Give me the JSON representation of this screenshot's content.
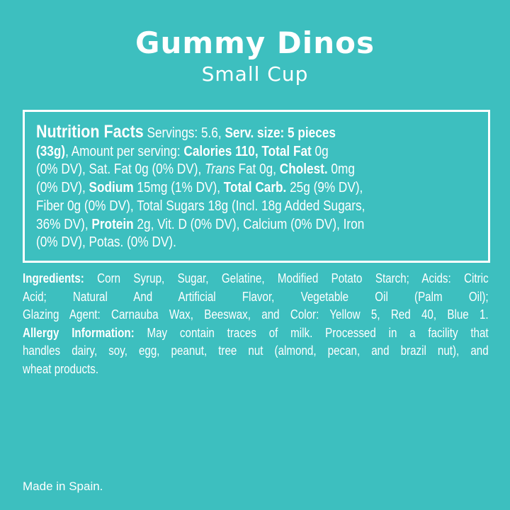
{
  "header": {
    "title": "Gummy Dinos",
    "subtitle": "Small Cup"
  },
  "nutrition": {
    "lines": [
      [
        {
          "t": "Nutrition Facts",
          "s": "big"
        },
        {
          "t": " Servings: 5.6, ",
          "s": ""
        },
        {
          "t": "Serv. size: 5 pieces",
          "s": "b"
        }
      ],
      [
        {
          "t": "(33g)",
          "s": "b"
        },
        {
          "t": ", Amount per serving: ",
          "s": ""
        },
        {
          "t": "Calories 110, Total Fat",
          "s": "b"
        },
        {
          "t": " 0g",
          "s": ""
        }
      ],
      [
        {
          "t": "(0% DV), Sat. Fat 0g (0% DV), ",
          "s": ""
        },
        {
          "t": "Trans",
          "s": "i"
        },
        {
          "t": " Fat 0g, ",
          "s": ""
        },
        {
          "t": "Cholest.",
          "s": "b"
        },
        {
          "t": " 0mg",
          "s": ""
        }
      ],
      [
        {
          "t": "(0% DV), ",
          "s": ""
        },
        {
          "t": "Sodium",
          "s": "b"
        },
        {
          "t": " 15mg (1% DV), ",
          "s": ""
        },
        {
          "t": "Total Carb.",
          "s": "b"
        },
        {
          "t": " 25g (9% DV),",
          "s": ""
        }
      ],
      [
        {
          "t": "Fiber 0g (0% DV), Total Sugars 18g (Incl. 18g Added Sugars,",
          "s": ""
        }
      ],
      [
        {
          "t": "36% DV), ",
          "s": ""
        },
        {
          "t": "Protein",
          "s": "b"
        },
        {
          "t": " 2g, Vit. D (0% DV), Calcium (0% DV), Iron",
          "s": ""
        }
      ],
      [
        {
          "t": "(0% DV), Potas. (0% DV).",
          "s": ""
        }
      ]
    ]
  },
  "ingredients": {
    "lines": [
      [
        {
          "t": "Ingredients:",
          "s": "b"
        },
        {
          "t": " Corn Syrup, Sugar, Gelatine, Modified Potato Starch; Acids: Citric",
          "s": ""
        }
      ],
      [
        {
          "t": "Acid; Natural And Artificial Flavor, Vegetable Oil (Palm Oil);",
          "s": ""
        }
      ],
      [
        {
          "t": "Glazing Agent: Carnauba Wax, Beeswax, and Color: Yellow 5, Red 40, Blue 1.",
          "s": ""
        }
      ],
      [
        {
          "t": "Allergy Information:",
          "s": "b"
        },
        {
          "t": " May contain traces of milk. Processed in a facility that",
          "s": ""
        }
      ],
      [
        {
          "t": "handles dairy, soy, egg, peanut, tree nut (almond, pecan, and brazil nut), and",
          "s": ""
        }
      ],
      [
        {
          "t": "wheat products.",
          "s": ""
        }
      ]
    ]
  },
  "footer": {
    "origin": "Made in Spain."
  },
  "colors": {
    "background": "#3dbfbf",
    "text": "#ffffff"
  }
}
